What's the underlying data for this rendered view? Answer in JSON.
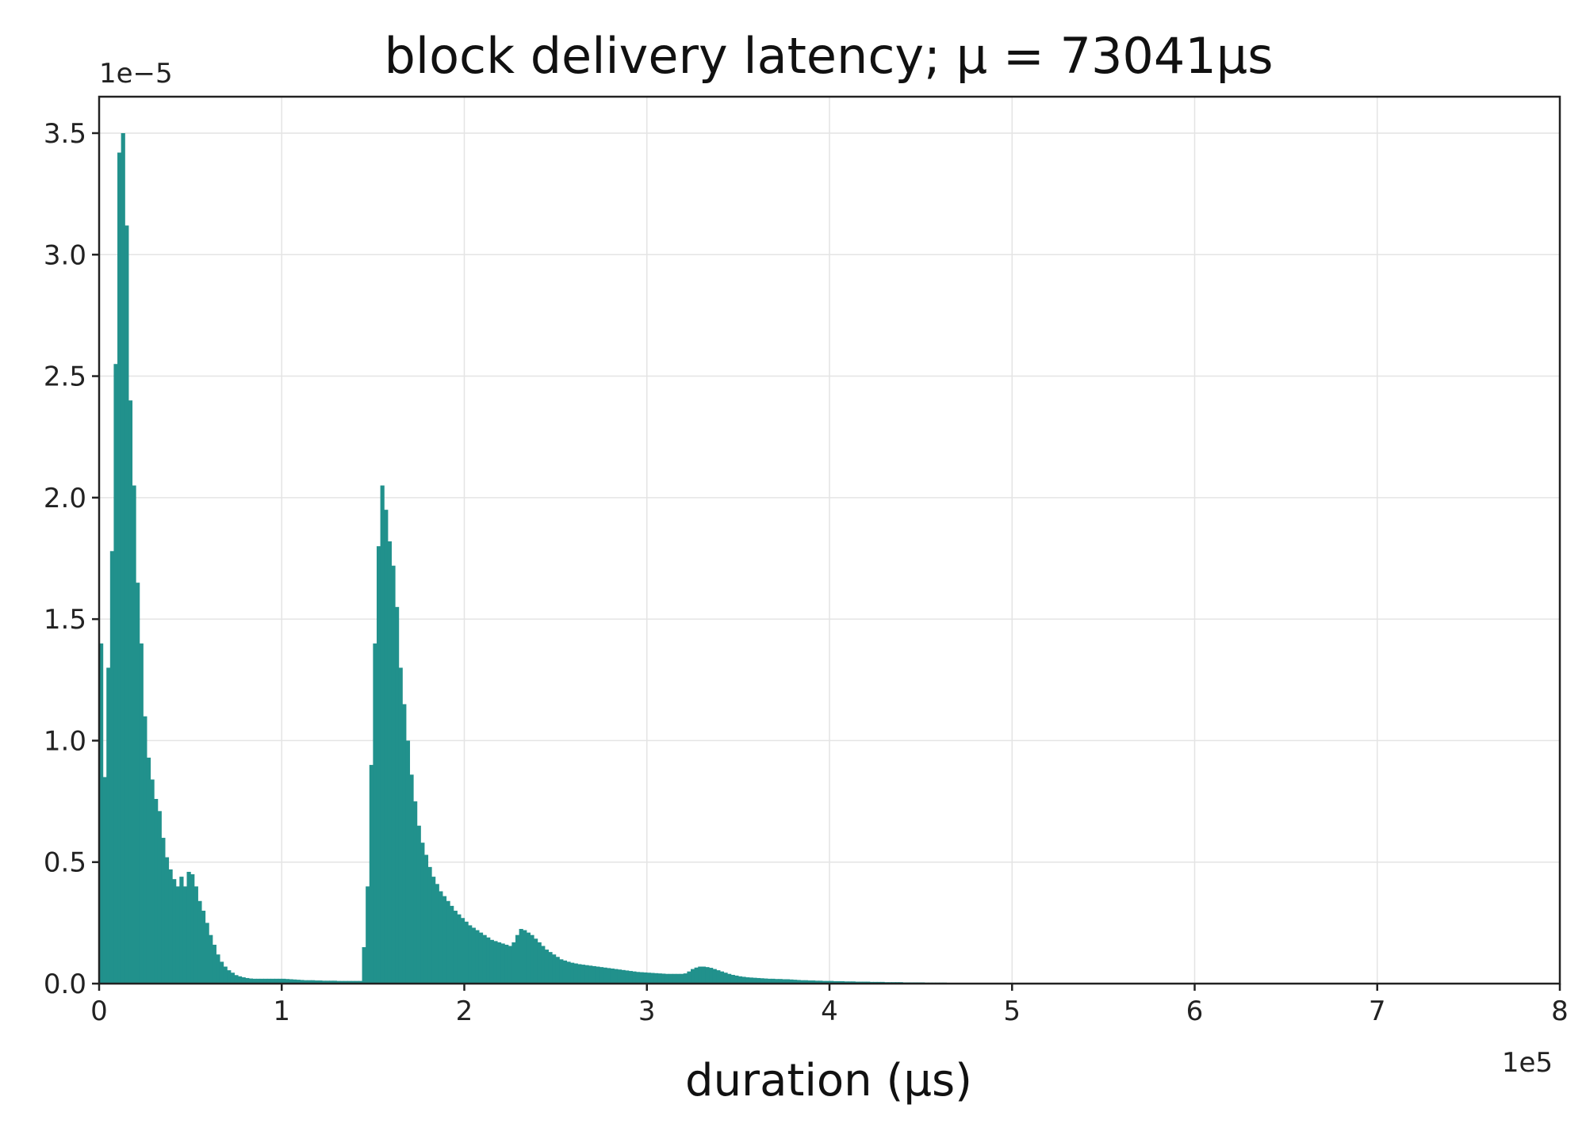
{
  "chart_data": {
    "type": "bar",
    "title": "block delivery latency; μ = 73041μs",
    "xlabel": "duration (μs)",
    "ylabel": "",
    "x_offset_label": "1e5",
    "y_offset_label": "1e−5",
    "xlim": [
      0,
      800000
    ],
    "ylim": [
      0,
      3.65e-05
    ],
    "x_ticks": [
      0,
      100000,
      200000,
      300000,
      400000,
      500000,
      600000,
      700000,
      800000
    ],
    "x_tick_labels": [
      "0",
      "1",
      "2",
      "3",
      "4",
      "5",
      "6",
      "7",
      "8"
    ],
    "y_ticks": [
      0,
      5e-06,
      1e-05,
      1.5e-05,
      2e-05,
      2.5e-05,
      3e-05,
      3.5e-05
    ],
    "y_tick_labels": [
      "0.0",
      "0.5",
      "1.0",
      "1.5",
      "2.0",
      "2.5",
      "3.0",
      "3.5"
    ],
    "grid": true,
    "bar_color": "#21918c",
    "histogram": {
      "x_start": 0,
      "bin_width": 2000,
      "values": [
        1.4e-05,
        8.5e-06,
        1.3e-05,
        1.78e-05,
        2.55e-05,
        3.42e-05,
        3.5e-05,
        3.12e-05,
        2.4e-05,
        2.05e-05,
        1.65e-05,
        1.4e-05,
        1.1e-05,
        9.3e-06,
        8.4e-06,
        7.6e-06,
        7.1e-06,
        6e-06,
        5.2e-06,
        4.7e-06,
        4.3e-06,
        4e-06,
        4.4e-06,
        4e-06,
        4.6e-06,
        4.5e-06,
        4e-06,
        3.4e-06,
        3e-06,
        2.5e-06,
        2e-06,
        1.6e-06,
        1.2e-06,
        9e-07,
        7e-07,
        5.5e-07,
        4.5e-07,
        3.5e-07,
        3e-07,
        2.6e-07,
        2.3e-07,
        2.1e-07,
        2e-07,
        2e-07,
        2e-07,
        2e-07,
        2e-07,
        2e-07,
        2e-07,
        2e-07,
        2e-07,
        1.9e-07,
        1.8e-07,
        1.7e-07,
        1.6e-07,
        1.5e-07,
        1.4e-07,
        1.4e-07,
        1.4e-07,
        1.3e-07,
        1.3e-07,
        1.2e-07,
        1.2e-07,
        1.2e-07,
        1.2e-07,
        1.1e-07,
        1.1e-07,
        1.1e-07,
        1.1e-07,
        1.1e-07,
        1.1e-07,
        1.1e-07,
        1.5e-06,
        4e-06,
        9e-06,
        1.4e-05,
        1.8e-05,
        2.05e-05,
        1.95e-05,
        1.82e-05,
        1.72e-05,
        1.55e-05,
        1.3e-05,
        1.15e-05,
        1e-05,
        8.6e-06,
        7.5e-06,
        6.5e-06,
        5.8e-06,
        5.3e-06,
        4.8e-06,
        4.4e-06,
        4.1e-06,
        3.8e-06,
        3.6e-06,
        3.4e-06,
        3.2e-06,
        3e-06,
        2.85e-06,
        2.7e-06,
        2.55e-06,
        2.4e-06,
        2.3e-06,
        2.2e-06,
        2.1e-06,
        2e-06,
        1.9e-06,
        1.8e-06,
        1.75e-06,
        1.7e-06,
        1.65e-06,
        1.6e-06,
        1.55e-06,
        1.7e-06,
        2e-06,
        2.25e-06,
        2.2e-06,
        2.1e-06,
        2e-06,
        1.85e-06,
        1.7e-06,
        1.55e-06,
        1.4e-06,
        1.3e-06,
        1.2e-06,
        1.1e-06,
        1e-06,
        9.5e-07,
        9e-07,
        8.6e-07,
        8.3e-07,
        8e-07,
        7.8e-07,
        7.6e-07,
        7.4e-07,
        7.2e-07,
        7e-07,
        6.8e-07,
        6.6e-07,
        6.4e-07,
        6.2e-07,
        6e-07,
        5.8e-07,
        5.6e-07,
        5.4e-07,
        5.2e-07,
        5e-07,
        4.8e-07,
        4.7e-07,
        4.6e-07,
        4.5e-07,
        4.4e-07,
        4.3e-07,
        4.2e-07,
        4.1e-07,
        4e-07,
        4e-07,
        4e-07,
        4e-07,
        4e-07,
        4.2e-07,
        5e-07,
        6e-07,
        6.6e-07,
        7e-07,
        7e-07,
        6.8e-07,
        6.5e-07,
        6e-07,
        5.5e-07,
        5e-07,
        4.5e-07,
        4e-07,
        3.6e-07,
        3.3e-07,
        3e-07,
        2.8e-07,
        2.6e-07,
        2.5e-07,
        2.4e-07,
        2.3e-07,
        2.2e-07,
        2.1e-07,
        2e-07,
        2e-07,
        1.9e-07,
        1.9e-07,
        1.8e-07,
        1.8e-07,
        1.7e-07,
        1.6e-07,
        1.5e-07,
        1.4e-07,
        1.4e-07,
        1.3e-07,
        1.3e-07,
        1.2e-07,
        1.2e-07,
        1.1e-07,
        1.1e-07,
        1.1e-07,
        1e-07,
        1e-07,
        1e-07,
        9e-08,
        9e-08,
        9e-08,
        8e-08,
        8e-08,
        8e-08,
        8e-08,
        7e-08,
        7e-08,
        7e-08,
        7e-08,
        6e-08,
        6e-08,
        6e-08,
        6e-08,
        6e-08,
        5e-08,
        5e-08,
        5e-08,
        5e-08,
        5e-08,
        5e-08,
        4e-08,
        4e-08,
        4e-08,
        4e-08,
        4e-08,
        4e-08,
        3e-08,
        3e-08,
        3e-08,
        3e-08,
        3e-08,
        3e-08,
        3e-08,
        3e-08,
        2e-08,
        2e-08,
        2e-08,
        2e-08,
        2e-08,
        2e-08,
        2e-08,
        2e-08,
        2e-08,
        2e-08
      ]
    }
  }
}
